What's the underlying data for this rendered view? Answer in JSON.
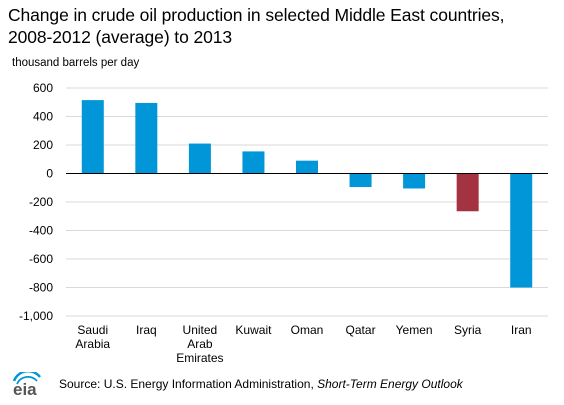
{
  "header": {
    "title_line1": "Change in crude oil production in selected Middle East countries,",
    "title_line2": "2008-2012 (average) to 2013",
    "unit_label": "thousand barrels per day"
  },
  "chart_data": {
    "type": "bar",
    "title": "Change in crude oil production in selected Middle East countries, 2008-2012 (average) to 2013",
    "ylabel": "thousand barrels per day",
    "xlabel": "",
    "categories": [
      "Saudi Arabia",
      "Iraq",
      "United Arab Emirates",
      "Kuwait",
      "Oman",
      "Qatar",
      "Yemen",
      "Syria",
      "Iran"
    ],
    "category_label_lines": [
      [
        "Saudi",
        "Arabia"
      ],
      [
        "Iraq"
      ],
      [
        "United",
        "Arab",
        "Emirates"
      ],
      [
        "Kuwait"
      ],
      [
        "Oman"
      ],
      [
        "Qatar"
      ],
      [
        "Yemen"
      ],
      [
        "Syria"
      ],
      [
        "Iran"
      ]
    ],
    "values": [
      515,
      495,
      210,
      155,
      90,
      -95,
      -105,
      -265,
      -800
    ],
    "ylim": [
      -1000,
      600
    ],
    "yticks": [
      600,
      400,
      200,
      0,
      -200,
      -400,
      -600,
      -800,
      -1000
    ],
    "ytick_labels": [
      "600",
      "400",
      "200",
      "0",
      "-200",
      "-400",
      "-600",
      "-800",
      "-1,000"
    ],
    "grid": "horizontal",
    "colors": {
      "default": "#0096d7",
      "highlight": "#a33340",
      "highlight_category": "Syria",
      "grid": "#d9d9d9",
      "axis": "#000000"
    }
  },
  "footer": {
    "logo_text": "eia",
    "source_prefix": "Source: U.S. Energy Information  Administration, ",
    "source_publication": "Short-Term Energy Outlook"
  }
}
